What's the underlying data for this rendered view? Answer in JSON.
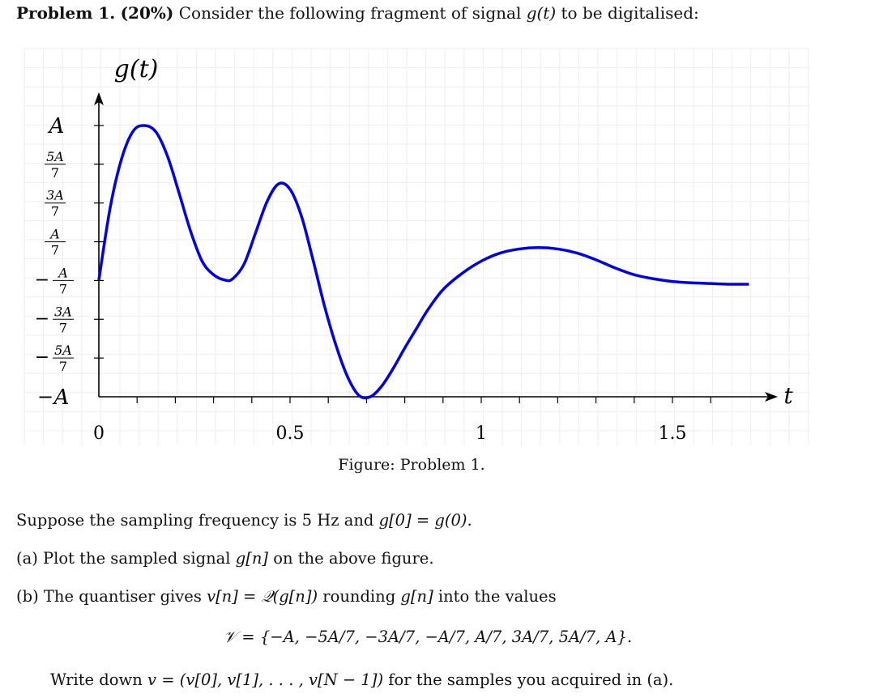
{
  "problem": {
    "label": "Problem 1.",
    "weight": "(20%)",
    "text_before": "Consider the following fragment of signal",
    "signal_symbol": "g(t)",
    "text_after": "to be digitalised:"
  },
  "chart_data": {
    "type": "line",
    "title": "g(t)",
    "xlabel": "t",
    "ylabel": "",
    "x_ticks": [
      0,
      0.5,
      1,
      1.5
    ],
    "x_tick_labels": [
      "0",
      "0.5",
      "1",
      "1.5"
    ],
    "xlim": [
      0,
      1.7
    ],
    "ylim": [
      -1,
      1
    ],
    "y_ticks": [
      1,
      0.7142857,
      0.4285714,
      0.1428571,
      -0.1428571,
      -0.4285714,
      -0.7142857,
      -1
    ],
    "y_tick_labels": [
      {
        "sign": "",
        "num": "A",
        "den": ""
      },
      {
        "sign": "",
        "num": "5A",
        "den": "7"
      },
      {
        "sign": "",
        "num": "3A",
        "den": "7"
      },
      {
        "sign": "",
        "num": "A",
        "den": "7"
      },
      {
        "sign": "−",
        "num": "A",
        "den": "7"
      },
      {
        "sign": "−",
        "num": "3A",
        "den": "7"
      },
      {
        "sign": "−",
        "num": "5A",
        "den": "7"
      },
      {
        "sign": "−",
        "num": "A",
        "den": ""
      }
    ],
    "grid": true,
    "line_color": "#0000ee",
    "series": [
      {
        "name": "",
        "x": [
          0,
          0.03,
          0.06,
          0.09,
          0.12,
          0.15,
          0.18,
          0.21,
          0.24,
          0.27,
          0.3,
          0.33,
          0.35,
          0.38,
          0.41,
          0.44,
          0.47,
          0.5,
          0.53,
          0.56,
          0.59,
          0.62,
          0.65,
          0.68,
          0.71,
          0.74,
          0.77,
          0.8,
          0.83,
          0.86,
          0.9,
          0.95,
          1.0,
          1.05,
          1.1,
          1.15,
          1.2,
          1.25,
          1.3,
          1.35,
          1.4,
          1.45,
          1.5,
          1.55,
          1.6,
          1.65,
          1.7
        ],
        "y": [
          -0.14,
          0.4,
          0.76,
          0.96,
          1.0,
          0.95,
          0.77,
          0.5,
          0.22,
          0.0,
          -0.1,
          -0.14,
          -0.13,
          -0.02,
          0.21,
          0.44,
          0.57,
          0.53,
          0.33,
          0.01,
          -0.33,
          -0.62,
          -0.85,
          -0.99,
          -1.0,
          -0.92,
          -0.79,
          -0.64,
          -0.5,
          -0.36,
          -0.21,
          -0.09,
          0.0,
          0.06,
          0.09,
          0.1,
          0.09,
          0.06,
          0.01,
          -0.05,
          -0.1,
          -0.13,
          -0.15,
          -0.16,
          -0.165,
          -0.17,
          -0.17
        ]
      }
    ]
  },
  "figure": {
    "caption": "Figure: Problem 1."
  },
  "para1": {
    "t1": "Suppose the sampling frequency is 5 Hz and",
    "eq": "g[0] = g(0)."
  },
  "item_a": {
    "marker": "(a)",
    "t1": "Plot the sampled signal",
    "sym": "g[n]",
    "t2": "on the above figure."
  },
  "item_b": {
    "marker": "(b)",
    "t1": "The quantiser gives",
    "eq": "v[n] = 𝒬(g[n])",
    "t2": "rounding",
    "sym": "g[n]",
    "t3": "into the values"
  },
  "set_eq": "𝒱 = {−A, −5A/7, −3A/7, −A/7, A/7, 3A/7, 5A/7, A}.",
  "write": {
    "t1": "Write down",
    "eq": "v = (v[0], v[1], . . . , v[N − 1])",
    "t2": "for the samples you acquired in (a)."
  }
}
